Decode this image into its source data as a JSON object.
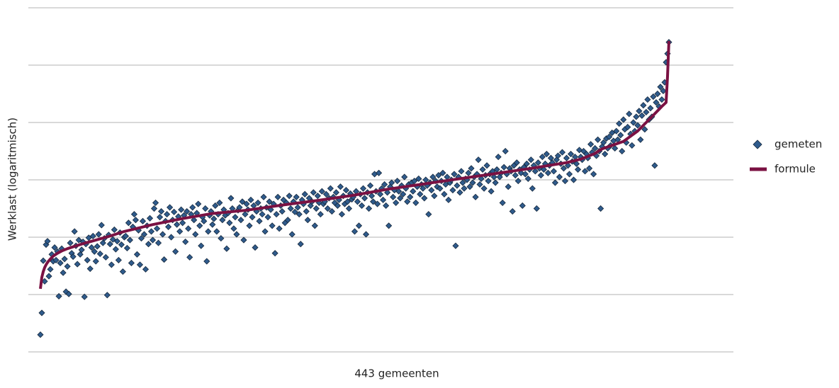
{
  "chart_data": {
    "type": "scatter",
    "x_label": "443 gemeenten",
    "y_label": "Werklast (logaritmisch)",
    "ylim": [
      0,
      6
    ],
    "yticks": [
      0,
      1,
      2,
      3,
      4,
      5,
      6
    ],
    "grid": true,
    "legend": "right",
    "series": [
      {
        "name": "gemeten",
        "type": "scatter",
        "color": "#2f5b8c",
        "values": [
          0.3,
          0.68,
          1.59,
          1.23,
          1.87,
          1.93,
          1.32,
          1.44,
          1.7,
          1.58,
          1.82,
          1.6,
          1.75,
          0.97,
          1.55,
          1.8,
          1.38,
          1.62,
          1.05,
          1.49,
          1.01,
          1.9,
          1.72,
          1.66,
          2.1,
          1.85,
          1.53,
          1.95,
          1.7,
          1.78,
          1.92,
          0.96,
          1.88,
          1.6,
          1.99,
          1.45,
          1.82,
          2.02,
          1.75,
          1.58,
          1.84,
          2.05,
          1.71,
          2.21,
          1.9,
          1.98,
          1.65,
          0.99,
          2.04,
          1.88,
          1.52,
          1.96,
          2.13,
          1.79,
          1.93,
          1.6,
          2.08,
          1.87,
          1.4,
          2.0,
          2.02,
          1.81,
          2.25,
          1.95,
          1.55,
          2.18,
          2.4,
          2.3,
          1.7,
          2.12,
          1.52,
          1.98,
          2.28,
          2.05,
          1.44,
          2.2,
          1.88,
          2.33,
          2.1,
          1.95,
          2.5,
          2.6,
          2.15,
          1.9,
          2.35,
          2.45,
          2.05,
          1.61,
          2.28,
          2.4,
          2.18,
          2.52,
          2.0,
          2.3,
          2.44,
          1.75,
          2.22,
          2.36,
          2.1,
          2.48,
          2.25,
          2.38,
          1.92,
          2.45,
          2.15,
          1.65,
          2.4,
          2.52,
          2.3,
          2.05,
          2.42,
          2.58,
          2.2,
          1.85,
          2.35,
          2.28,
          2.5,
          1.58,
          2.1,
          2.38,
          2.45,
          2.22,
          2.32,
          2.55,
          2.1,
          2.4,
          2.6,
          1.98,
          2.3,
          2.48,
          2.38,
          1.8,
          2.42,
          2.25,
          2.68,
          2.5,
          2.15,
          2.35,
          2.05,
          2.47,
          2.52,
          2.3,
          2.62,
          1.95,
          2.4,
          2.58,
          2.48,
          2.2,
          2.65,
          2.35,
          2.55,
          1.82,
          2.45,
          2.6,
          2.28,
          2.5,
          2.4,
          2.7,
          2.1,
          2.52,
          2.35,
          2.62,
          2.48,
          2.2,
          2.58,
          1.72,
          2.4,
          2.7,
          2.15,
          2.55,
          2.45,
          2.65,
          2.25,
          2.6,
          2.3,
          2.72,
          2.5,
          2.05,
          2.62,
          2.44,
          2.7,
          2.52,
          2.4,
          1.88,
          2.65,
          2.58,
          2.75,
          2.45,
          2.3,
          2.68,
          2.55,
          2.62,
          2.78,
          2.2,
          2.5,
          2.72,
          2.6,
          2.4,
          2.8,
          2.58,
          2.62,
          2.75,
          2.5,
          2.68,
          2.85,
          2.45,
          2.7,
          2.6,
          2.78,
          2.55,
          2.65,
          2.88,
          2.4,
          2.72,
          2.58,
          2.82,
          2.62,
          2.5,
          2.76,
          2.66,
          2.7,
          2.1,
          2.8,
          2.62,
          2.2,
          2.75,
          2.55,
          2.85,
          2.68,
          2.05,
          2.78,
          2.5,
          2.9,
          2.72,
          2.62,
          3.1,
          2.8,
          2.58,
          3.12,
          2.75,
          2.85,
          2.65,
          2.92,
          2.55,
          2.78,
          2.2,
          2.88,
          2.95,
          2.7,
          2.82,
          2.6,
          2.98,
          2.8,
          2.68,
          2.9,
          2.75,
          3.05,
          2.85,
          2.62,
          2.92,
          2.7,
          2.95,
          2.8,
          2.98,
          2.6,
          2.88,
          3.02,
          2.75,
          2.92,
          2.85,
          2.68,
          3.0,
          2.9,
          2.4,
          2.95,
          2.82,
          3.05,
          2.72,
          2.98,
          2.88,
          3.08,
          2.85,
          2.98,
          3.12,
          2.75,
          2.92,
          3.05,
          2.65,
          2.95,
          3.0,
          2.82,
          3.1,
          1.85,
          2.9,
          3.05,
          2.78,
          3.15,
          2.95,
          2.85,
          3.02,
          3.0,
          3.12,
          2.88,
          3.2,
          2.95,
          3.05,
          2.7,
          3.1,
          3.35,
          2.92,
          3.02,
          3.18,
          2.85,
          3.08,
          3.25,
          2.98,
          3.1,
          2.8,
          3.15,
          3.05,
          2.95,
          3.18,
          3.4,
          3.05,
          3.12,
          2.6,
          3.22,
          3.5,
          3.1,
          2.88,
          3.2,
          3.15,
          2.45,
          3.25,
          3.08,
          3.3,
          2.98,
          3.18,
          3.12,
          2.55,
          3.22,
          3.1,
          3.28,
          3.02,
          3.18,
          3.35,
          2.85,
          3.25,
          3.15,
          2.5,
          3.3,
          3.2,
          3.08,
          3.4,
          3.18,
          3.28,
          3.45,
          3.12,
          3.25,
          3.38,
          3.3,
          3.15,
          2.95,
          3.35,
          3.42,
          3.05,
          3.28,
          3.48,
          3.2,
          2.98,
          3.38,
          3.25,
          3.1,
          3.45,
          3.32,
          3.0,
          3.4,
          3.28,
          3.18,
          3.52,
          3.4,
          3.35,
          3.5,
          3.15,
          3.45,
          3.38,
          3.2,
          3.62,
          3.48,
          3.1,
          3.55,
          3.42,
          3.7,
          3.5,
          2.5,
          3.58,
          3.65,
          3.45,
          3.72,
          3.55,
          3.75,
          3.6,
          3.82,
          3.68,
          3.55,
          3.85,
          3.7,
          3.98,
          3.78,
          3.5,
          4.05,
          3.88,
          3.65,
          3.92,
          4.15,
          3.8,
          3.6,
          4.0,
          3.85,
          4.1,
          3.95,
          4.2,
          3.7,
          4.12,
          4.3,
          3.88,
          4.18,
          4.4,
          4.05,
          4.25,
          4.1,
          4.45,
          3.25,
          4.35,
          4.5,
          4.28,
          4.62,
          4.4,
          4.55,
          4.7,
          5.05,
          5.2,
          5.4
        ]
      },
      {
        "name": "formule",
        "type": "line",
        "color": "#7a1142",
        "x": [
          1,
          2,
          3,
          4,
          5,
          6,
          8,
          10,
          13,
          16,
          20,
          25,
          30,
          40,
          50,
          60,
          80,
          100,
          121,
          146,
          171,
          196,
          221,
          246,
          271,
          296,
          321,
          346,
          371,
          381,
          391,
          396,
          411,
          421,
          431,
          438,
          441,
          442,
          443
        ],
        "values": [
          1.1,
          1.3,
          1.4,
          1.47,
          1.52,
          1.56,
          1.62,
          1.67,
          1.72,
          1.76,
          1.8,
          1.84,
          1.88,
          1.95,
          2.02,
          2.1,
          2.22,
          2.32,
          2.41,
          2.47,
          2.56,
          2.64,
          2.73,
          2.84,
          2.93,
          3.02,
          3.11,
          3.2,
          3.3,
          3.36,
          3.46,
          3.54,
          3.67,
          3.85,
          4.1,
          4.28,
          4.35,
          4.8,
          5.42
        ]
      }
    ]
  }
}
